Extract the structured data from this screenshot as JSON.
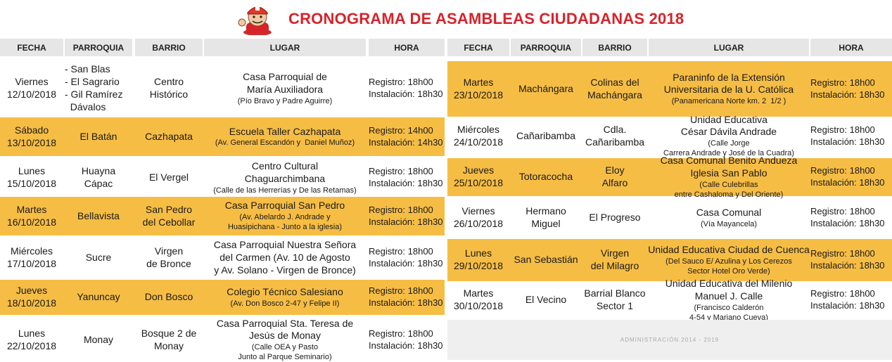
{
  "title": "CRONOGRAMA DE ASAMBLEAS CIUDADANAS 2018",
  "headers": {
    "fecha": "FECHA",
    "parroquia": "PARROQUIA",
    "barrio": "BARRIO",
    "lugar": "LUGAR",
    "hora": "HORA"
  },
  "footer": "ADMINISTRACIÓN 2014 - 2019",
  "colors": {
    "accent": "#d8232a",
    "highlight": "#f6bd45",
    "header_bg": "#e6e6e6"
  },
  "left": [
    {
      "day": "Viernes",
      "date": "12/10/2018",
      "parroquia": [
        "- San Blas",
        "- El Sagrario",
        "- Gil Ramírez",
        "  Dávalos"
      ],
      "barrio": [
        "Centro",
        "Histórico"
      ],
      "lugar": [
        "Casa Parroquial de",
        "María Auxiliadora"
      ],
      "lugar_sub": [
        "(Pío Bravo y Padre Aguirre)"
      ],
      "registro": "Registro: 18h00",
      "instalacion": "Instalación: 18h30",
      "yellow": false
    },
    {
      "day": "Sábado",
      "date": "13/10/2018",
      "parroquia": [
        "El Batán"
      ],
      "barrio": [
        "Cazhapata"
      ],
      "lugar": [
        "Escuela Taller Cazhapata"
      ],
      "lugar_sub": [
        "(Av. General Escandón y  Daniel Muñoz)"
      ],
      "registro": "Registro: 14h00",
      "instalacion": "Instalación: 14h30",
      "yellow": true
    },
    {
      "day": "Lunes",
      "date": "15/10/2018",
      "parroquia": [
        "Huayna",
        "Cápac"
      ],
      "barrio": [
        "El Vergel"
      ],
      "lugar": [
        "Centro Cultural",
        "Chaguarchimbana"
      ],
      "lugar_sub": [
        "(Calle de las Herrerías y De las Retamas)"
      ],
      "registro": "Registro: 18h00",
      "instalacion": "Instalación: 18h30",
      "yellow": false
    },
    {
      "day": "Martes",
      "date": "16/10/2018",
      "parroquia": [
        "Bellavista"
      ],
      "barrio": [
        "San Pedro",
        "del Cebollar"
      ],
      "lugar": [
        "Casa Parroquial San Pedro"
      ],
      "lugar_sub": [
        "(Av. Abelardo J. Andrade y",
        "Huasipichana - Junto a la iglesia)"
      ],
      "registro": "Registro: 18h00",
      "instalacion": "Instalación: 18h30",
      "yellow": true
    },
    {
      "day": "Miércoles",
      "date": "17/10/2018",
      "parroquia": [
        "Sucre"
      ],
      "barrio": [
        "Virgen",
        "de Bronce"
      ],
      "lugar": [
        "Casa Parroquial Nuestra Señora",
        "del Carmen (Av. 10 de Agosto",
        "y Av. Solano - Virgen de Bronce)"
      ],
      "lugar_sub": [],
      "registro": "Registro: 18h00",
      "instalacion": "Instalación: 18h30",
      "yellow": false
    },
    {
      "day": "Jueves",
      "date": "18/10/2018",
      "parroquia": [
        "Yanuncay"
      ],
      "barrio": [
        "Don Bosco"
      ],
      "lugar": [
        "Colegio Técnico Salesiano"
      ],
      "lugar_sub": [
        "(Av. Don Bosco 2-47 y Felipe II)"
      ],
      "registro": "Registro: 18h00",
      "instalacion": "Instalación: 18h30",
      "yellow": true
    },
    {
      "day": "Lunes",
      "date": "22/10/2018",
      "parroquia": [
        "Monay"
      ],
      "barrio": [
        "Bosque 2 de",
        "Monay"
      ],
      "lugar": [
        "Casa Parroquial Sta. Teresa de",
        "Jesús de Monay"
      ],
      "lugar_sub": [
        "(Calle OEA y Pasto",
        "Junto al Parque Seminario)"
      ],
      "registro": "Registro: 18h00",
      "instalacion": "Instalación: 18h30",
      "yellow": false
    }
  ],
  "right": [
    {
      "day": "Martes",
      "date": "23/10/2018",
      "parroquia": [
        "Machángara"
      ],
      "barrio": [
        "Colinas del",
        "Machángara"
      ],
      "lugar": [
        "Paraninfo de la Extensión",
        "Universitaria de la U. Católica"
      ],
      "lugar_sub": [
        "(Panamericana Norte km. 2  1/2 )"
      ],
      "registro": "Registro: 18h00",
      "instalacion": "Instalación: 18h30",
      "yellow": true
    },
    {
      "day": "Miércoles",
      "date": "24/10/2018",
      "parroquia": [
        "Cañaribamba"
      ],
      "barrio": [
        "Cdla.",
        "Cañaribamba"
      ],
      "lugar": [
        "Unidad Educativa",
        "César Dávila Andrade"
      ],
      "lugar_sub": [
        "(Calle Jorge",
        "Carrera Andrade y José de la Cuadra)"
      ],
      "registro": "Registro: 18h00",
      "instalacion": "Instalación: 18h30",
      "yellow": false
    },
    {
      "day": "Jueves",
      "date": "25/10/2018",
      "parroquia": [
        "Totoracocha"
      ],
      "barrio": [
        "Eloy",
        "Alfaro"
      ],
      "lugar": [
        "Casa Comunal Benito Andueza",
        "Iglesia San Pablo"
      ],
      "lugar_sub": [
        "(Calle Culebrillas",
        "entre Cashaloma y Del Oriente)"
      ],
      "registro": "Registro: 18h00",
      "instalacion": "Instalación: 18h30",
      "yellow": true
    },
    {
      "day": "Viernes",
      "date": "26/10/2018",
      "parroquia": [
        "Hermano",
        "Miguel"
      ],
      "barrio": [
        "El Progreso"
      ],
      "lugar": [
        "Casa Comunal"
      ],
      "lugar_sub": [
        "(Vía Mayancela)"
      ],
      "registro": "Registro: 18h00",
      "instalacion": "Instalación: 18h30",
      "yellow": false
    },
    {
      "day": "Lunes",
      "date": "29/10/2018",
      "parroquia": [
        "San Sebastián"
      ],
      "barrio": [
        "Virgen",
        "del Milagro"
      ],
      "lugar": [
        "Unidad Educativa Ciudad de Cuenca"
      ],
      "lugar_sub": [
        "(Del Sauco E/ Azulina y Los Cerezos",
        "Sector Hotel Oro Verde)"
      ],
      "registro": "Registro: 18h00",
      "instalacion": "Instalación: 18h30",
      "yellow": true
    },
    {
      "day": "Martes",
      "date": "30/10/2018",
      "parroquia": [
        "El Vecino"
      ],
      "barrio": [
        "Barrial Blanco",
        "Sector 1"
      ],
      "lugar": [
        "Unidad Educativa del Milenio",
        "Manuel J. Calle"
      ],
      "lugar_sub": [
        "(Francisco Calderón",
        "4-54 y Mariano Cueva)"
      ],
      "registro": "Registro: 18h00",
      "instalacion": "Instalación: 18h30",
      "yellow": false
    }
  ]
}
